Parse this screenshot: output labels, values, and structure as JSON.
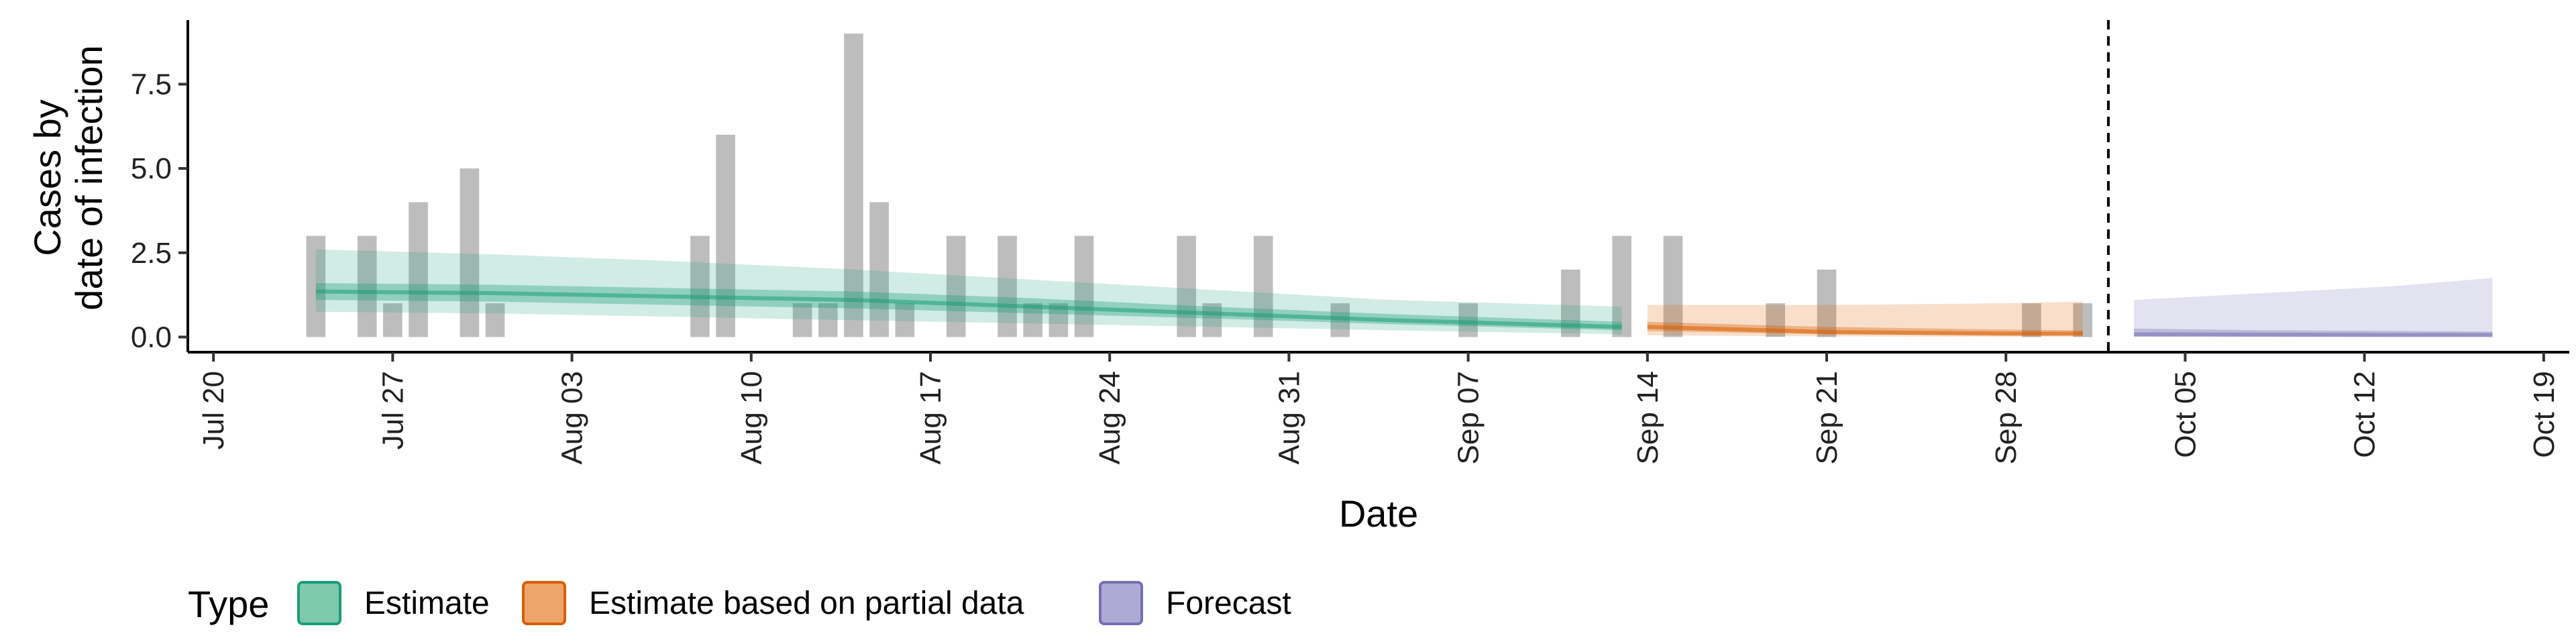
{
  "chart_data": {
    "type": "bar",
    "title": "",
    "xlabel": "Date",
    "ylabel_lines": [
      "Cases by",
      "date of infection"
    ],
    "x_tick_labels": [
      "Jul 20",
      "Jul 27",
      "Aug 03",
      "Aug 10",
      "Aug 17",
      "Aug 24",
      "Aug 31",
      "Sep 07",
      "Sep 14",
      "Sep 21",
      "Sep 28",
      "Oct 05",
      "Oct 12",
      "Oct 19"
    ],
    "y_tick_labels": [
      "0.0",
      "2.5",
      "5.0",
      "7.5"
    ],
    "y_ticks": [
      0,
      2.5,
      5,
      7.5
    ],
    "xlim": [
      "2020-07-19",
      "2020-10-20"
    ],
    "ylim": [
      -0.45,
      9.4
    ],
    "grid": false,
    "legend_position": "bottom",
    "forecast_date": "2020-10-02",
    "bars": [
      {
        "date": "2020-07-24",
        "value": 3
      },
      {
        "date": "2020-07-26",
        "value": 3
      },
      {
        "date": "2020-07-27",
        "value": 1
      },
      {
        "date": "2020-07-28",
        "value": 4
      },
      {
        "date": "2020-07-30",
        "value": 5
      },
      {
        "date": "2020-07-31",
        "value": 1
      },
      {
        "date": "2020-08-08",
        "value": 3
      },
      {
        "date": "2020-08-09",
        "value": 6
      },
      {
        "date": "2020-08-12",
        "value": 1
      },
      {
        "date": "2020-08-13",
        "value": 1
      },
      {
        "date": "2020-08-14",
        "value": 9
      },
      {
        "date": "2020-08-15",
        "value": 4
      },
      {
        "date": "2020-08-16",
        "value": 1
      },
      {
        "date": "2020-08-18",
        "value": 3
      },
      {
        "date": "2020-08-20",
        "value": 3
      },
      {
        "date": "2020-08-21",
        "value": 1
      },
      {
        "date": "2020-08-22",
        "value": 1
      },
      {
        "date": "2020-08-23",
        "value": 3
      },
      {
        "date": "2020-08-27",
        "value": 3
      },
      {
        "date": "2020-08-28",
        "value": 1
      },
      {
        "date": "2020-08-30",
        "value": 3
      },
      {
        "date": "2020-09-02",
        "value": 1
      },
      {
        "date": "2020-09-07",
        "value": 1
      },
      {
        "date": "2020-09-11",
        "value": 2
      },
      {
        "date": "2020-09-13",
        "value": 3
      },
      {
        "date": "2020-09-15",
        "value": 3
      },
      {
        "date": "2020-09-19",
        "value": 1
      },
      {
        "date": "2020-09-21",
        "value": 2
      },
      {
        "date": "2020-09-29",
        "value": 1
      },
      {
        "date": "2020-10-01",
        "value": 1
      }
    ],
    "series": [
      {
        "name": "Estimate",
        "color": "#1b9e77",
        "dates": [
          "2020-07-24",
          "2020-07-31",
          "2020-08-07",
          "2020-08-14",
          "2020-08-21",
          "2020-08-28",
          "2020-09-04",
          "2020-09-13"
        ],
        "median": [
          1.35,
          1.3,
          1.2,
          1.1,
          0.9,
          0.7,
          0.5,
          0.3
        ],
        "lower_50": [
          1.1,
          1.05,
          0.95,
          0.85,
          0.7,
          0.55,
          0.38,
          0.2
        ],
        "upper_50": [
          1.6,
          1.55,
          1.45,
          1.35,
          1.15,
          0.9,
          0.68,
          0.45
        ],
        "lower_90": [
          0.75,
          0.7,
          0.6,
          0.5,
          0.4,
          0.3,
          0.2,
          0.08
        ],
        "upper_90": [
          2.6,
          2.45,
          2.25,
          2.0,
          1.7,
          1.4,
          1.1,
          0.9
        ]
      },
      {
        "name": "Estimate based on partial data",
        "color": "#d95f02",
        "dates": [
          "2020-09-14",
          "2020-09-21",
          "2020-09-28",
          "2020-10-01"
        ],
        "median": [
          0.3,
          0.15,
          0.1,
          0.1
        ],
        "lower_50": [
          0.18,
          0.08,
          0.05,
          0.05
        ],
        "upper_50": [
          0.45,
          0.3,
          0.22,
          0.2
        ],
        "lower_90": [
          0.05,
          0.02,
          0.01,
          0.01
        ],
        "upper_90": [
          0.95,
          0.95,
          1.0,
          1.05
        ]
      },
      {
        "name": "Forecast",
        "color": "#7570b3",
        "dates": [
          "2020-10-03",
          "2020-10-08",
          "2020-10-13",
          "2020-10-17"
        ],
        "median": [
          0.08,
          0.07,
          0.06,
          0.06
        ],
        "lower_50": [
          0.02,
          0.02,
          0.02,
          0.02
        ],
        "upper_50": [
          0.25,
          0.2,
          0.18,
          0.16
        ],
        "lower_90": [
          0.0,
          0.0,
          0.0,
          0.0
        ],
        "upper_90": [
          1.1,
          1.3,
          1.5,
          1.75
        ]
      }
    ]
  },
  "legend": {
    "title": "Type",
    "items": [
      {
        "label": "Estimate",
        "fill": "#7fc9ad",
        "stroke": "#1b9e77"
      },
      {
        "label": "Estimate based on partial data",
        "fill": "#eca56a",
        "stroke": "#d95f02"
      },
      {
        "label": "Forecast",
        "fill": "#aeaad6",
        "stroke": "#7570b3"
      }
    ]
  }
}
